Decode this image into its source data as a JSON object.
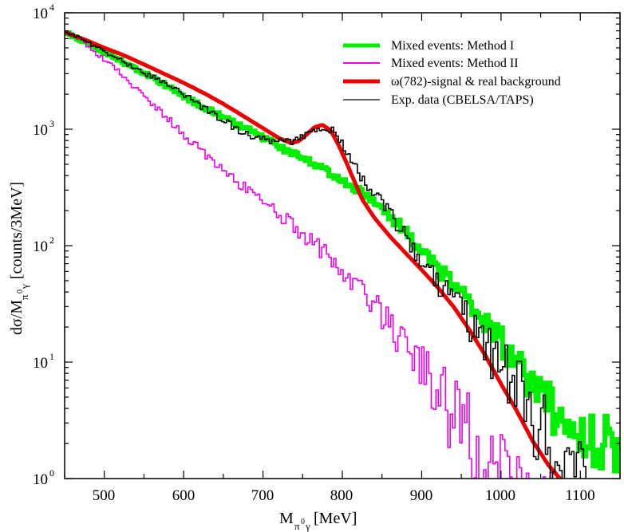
{
  "chart_data": {
    "type": "line",
    "title": "",
    "xlabel": {
      "main": "M",
      "sub_pi": "π",
      "sup_zero": "0",
      "sub_gamma": "γ",
      "unit": "[MeV]"
    },
    "ylabel": {
      "main": "dσ/M",
      "sub_pi": "π",
      "sup_zero": "0",
      "sub_gamma": "γ",
      "unit": "[counts/3MeV]"
    },
    "xlim": [
      450,
      1150
    ],
    "ylim": [
      1,
      10000
    ],
    "yscale": "log",
    "x_ticks": [
      500,
      600,
      700,
      800,
      900,
      1000,
      1100
    ],
    "x_tick_labels": [
      "500",
      "600",
      "700",
      "800",
      "900",
      "1000",
      "1100"
    ],
    "y_ticks": [
      1,
      10,
      100,
      1000,
      10000
    ],
    "y_tick_labels": [
      {
        "base": "10",
        "exp": "0"
      },
      {
        "base": "10",
        "exp": "1"
      },
      {
        "base": "10",
        "exp": "2"
      },
      {
        "base": "10",
        "exp": "3"
      },
      {
        "base": "10",
        "exp": "4"
      }
    ],
    "legend_position": "top-right",
    "series": [
      {
        "name": "Mixed events: Method I",
        "color": "#00ee00",
        "style": "step-thick",
        "x": [
          450,
          470,
          490,
          510,
          530,
          550,
          570,
          590,
          610,
          630,
          650,
          670,
          690,
          710,
          730,
          750,
          770,
          790,
          810,
          830,
          850,
          870,
          890,
          910,
          930,
          950,
          970,
          990,
          1010,
          1030,
          1050,
          1070,
          1090,
          1110,
          1130,
          1150
        ],
        "y": [
          6800,
          5900,
          5000,
          4200,
          3600,
          3050,
          2550,
          2150,
          1750,
          1480,
          1280,
          1080,
          920,
          780,
          650,
          560,
          480,
          400,
          330,
          270,
          200,
          155,
          110,
          76,
          55,
          40,
          28,
          19,
          12,
          7.5,
          5,
          3.5,
          2.8,
          2.2,
          2.1,
          2.0
        ]
      },
      {
        "name": "Mixed events: Method II",
        "color": "#ee00ee",
        "style": "step-thin",
        "x": [
          450,
          470,
          490,
          510,
          530,
          550,
          570,
          590,
          610,
          630,
          650,
          670,
          690,
          710,
          730,
          750,
          770,
          790,
          810,
          830,
          850,
          870,
          890,
          910,
          930,
          950,
          970,
          990,
          1010,
          1030
        ],
        "y": [
          7000,
          5900,
          4500,
          3500,
          2600,
          1900,
          1450,
          1050,
          780,
          580,
          450,
          340,
          280,
          210,
          165,
          130,
          95,
          70,
          52,
          38,
          25,
          17,
          11,
          7,
          4.5,
          2.9,
          1.9,
          1.25,
          0.9,
          0.6
        ]
      },
      {
        "name": "ω(782)-signal & real background",
        "color": "#ee0000",
        "style": "smooth-thick",
        "x": [
          450,
          475,
          500,
          525,
          550,
          575,
          600,
          625,
          650,
          675,
          700,
          720,
          735,
          745,
          755,
          765,
          775,
          785,
          795,
          805,
          815,
          825,
          840,
          860,
          880,
          900,
          920,
          940,
          960,
          980,
          1000,
          1020,
          1040,
          1060,
          1080
        ],
        "y": [
          6800,
          5900,
          5000,
          4300,
          3600,
          3000,
          2500,
          2050,
          1650,
          1300,
          1020,
          840,
          760,
          790,
          900,
          1040,
          1090,
          980,
          740,
          520,
          360,
          250,
          175,
          120,
          86,
          62,
          44,
          30,
          19,
          11.5,
          6.5,
          3.8,
          2.1,
          1.3,
          0.9
        ]
      },
      {
        "name": "Exp. data (CBELSA/TAPS)",
        "color": "#000000",
        "style": "step-thin",
        "x": [
          450,
          470,
          490,
          510,
          530,
          550,
          570,
          590,
          610,
          630,
          650,
          670,
          690,
          710,
          730,
          750,
          770,
          790,
          810,
          830,
          850,
          870,
          890,
          910,
          930,
          950,
          970,
          990,
          1010,
          1030,
          1050,
          1070
        ],
        "y": [
          6900,
          6000,
          5050,
          4250,
          3650,
          3050,
          2600,
          2200,
          1800,
          1450,
          1200,
          980,
          870,
          780,
          760,
          860,
          1050,
          980,
          580,
          330,
          240,
          150,
          95,
          60,
          40,
          28,
          18,
          11,
          7,
          4.5,
          2.8,
          1.5
        ]
      }
    ]
  }
}
